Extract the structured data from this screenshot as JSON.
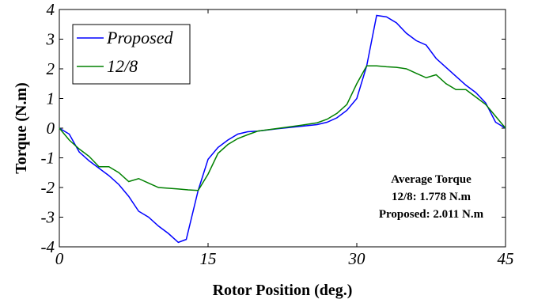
{
  "chart_data": {
    "type": "line",
    "title": "",
    "xlabel": "Rotor Position (deg.)",
    "ylabel": "Torque (N.m)",
    "xlim": [
      0,
      45
    ],
    "ylim": [
      -4,
      4
    ],
    "xticks": [
      0,
      15,
      30,
      45
    ],
    "yticks": [
      -4,
      -3,
      -2,
      -1,
      0,
      1,
      2,
      3,
      4
    ],
    "xtick_labels": [
      "0",
      "15",
      "30",
      "45"
    ],
    "ytick_labels": [
      "-4",
      "-3",
      "-2",
      "-1",
      "0",
      "1",
      "2",
      "3",
      "4"
    ],
    "grid": false,
    "legend_position": "top-left",
    "series": [
      {
        "name": "Proposed",
        "color": "#0000ff",
        "points": [
          [
            0,
            0
          ],
          [
            1,
            -0.2
          ],
          [
            2,
            -0.8
          ],
          [
            3,
            -1.1
          ],
          [
            4,
            -1.35
          ],
          [
            5,
            -1.6
          ],
          [
            6,
            -1.9
          ],
          [
            7,
            -2.3
          ],
          [
            8,
            -2.8
          ],
          [
            9,
            -3.0
          ],
          [
            10,
            -3.3
          ],
          [
            11,
            -3.55
          ],
          [
            12,
            -3.85
          ],
          [
            12.8,
            -3.75
          ],
          [
            14,
            -2.1
          ],
          [
            15,
            -1.05
          ],
          [
            16,
            -0.65
          ],
          [
            17,
            -0.4
          ],
          [
            18,
            -0.2
          ],
          [
            19,
            -0.12
          ],
          [
            20,
            -0.1
          ],
          [
            22,
            -0.02
          ],
          [
            24,
            0.05
          ],
          [
            26,
            0.12
          ],
          [
            27,
            0.2
          ],
          [
            28,
            0.35
          ],
          [
            29,
            0.6
          ],
          [
            30,
            1.0
          ],
          [
            31,
            2.1
          ],
          [
            32,
            3.8
          ],
          [
            33,
            3.75
          ],
          [
            34,
            3.55
          ],
          [
            35,
            3.2
          ],
          [
            36,
            2.95
          ],
          [
            37,
            2.8
          ],
          [
            38,
            2.35
          ],
          [
            39,
            2.05
          ],
          [
            40,
            1.75
          ],
          [
            41,
            1.45
          ],
          [
            42,
            1.2
          ],
          [
            43,
            0.85
          ],
          [
            44,
            0.2
          ],
          [
            45,
            0
          ]
        ]
      },
      {
        "name": "12/8",
        "color": "#008000",
        "points": [
          [
            0,
            0
          ],
          [
            1,
            -0.4
          ],
          [
            2,
            -0.7
          ],
          [
            3,
            -0.95
          ],
          [
            4,
            -1.3
          ],
          [
            5,
            -1.3
          ],
          [
            6,
            -1.5
          ],
          [
            7,
            -1.8
          ],
          [
            8,
            -1.7
          ],
          [
            9,
            -1.85
          ],
          [
            10,
            -2.0
          ],
          [
            12,
            -2.05
          ],
          [
            13,
            -2.08
          ],
          [
            14,
            -2.1
          ],
          [
            15,
            -1.55
          ],
          [
            16,
            -0.85
          ],
          [
            17,
            -0.55
          ],
          [
            18,
            -0.35
          ],
          [
            19,
            -0.22
          ],
          [
            20,
            -0.1
          ],
          [
            22,
            -0.01
          ],
          [
            24,
            0.08
          ],
          [
            26,
            0.18
          ],
          [
            27,
            0.3
          ],
          [
            28,
            0.5
          ],
          [
            29,
            0.8
          ],
          [
            30,
            1.5
          ],
          [
            31,
            2.1
          ],
          [
            32,
            2.1
          ],
          [
            33,
            2.07
          ],
          [
            34,
            2.05
          ],
          [
            35,
            2.0
          ],
          [
            36,
            1.85
          ],
          [
            37,
            1.7
          ],
          [
            38,
            1.8
          ],
          [
            39,
            1.5
          ],
          [
            40,
            1.3
          ],
          [
            41,
            1.3
          ],
          [
            42,
            1.05
          ],
          [
            43,
            0.8
          ],
          [
            44,
            0.4
          ],
          [
            45,
            0
          ]
        ]
      }
    ],
    "annotation": {
      "title": "Average Torque",
      "line1": "12/8: 1.778 N.m",
      "line2": "Proposed: 2.011 N.m"
    }
  }
}
